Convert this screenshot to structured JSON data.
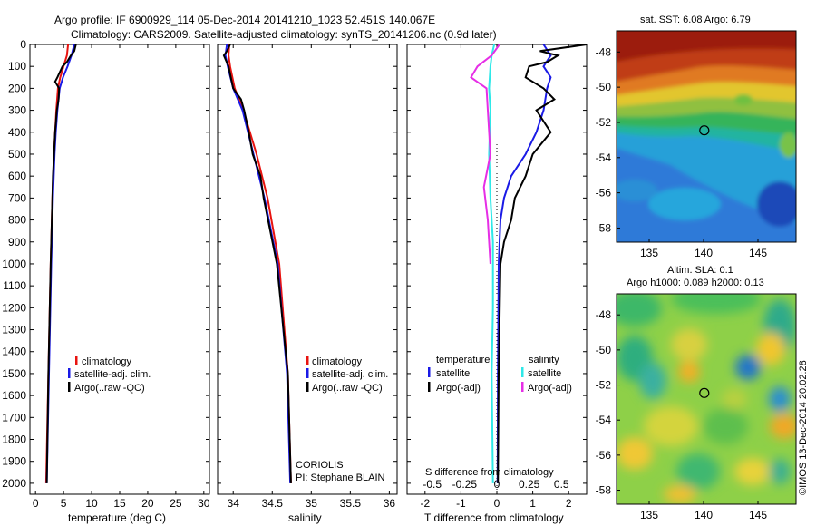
{
  "header": {
    "line1": "Argo profile: IF 6900929_114 05-Dec-2014 20141210_1023 52.451S 140.067E",
    "line2": "Climatology: CARS2009. Satellite-adjusted climatology: synTS_20141206.nc (0.9d later)"
  },
  "colors": {
    "climatology": "#e8130f",
    "satellite": "#1a1ae6",
    "argo": "#000000",
    "sat_salinity": "#2ee8e8",
    "argo_salinity": "#e62ee6"
  },
  "legend": {
    "climatology": "climatology",
    "satellite_clim": "satellite-adj. clim.",
    "argo_raw": "Argo(..raw -QC)",
    "temperature_head": "temperature",
    "salinity_head": "salinity",
    "satellite": "satellite",
    "argo_adj": "Argo(-adj)"
  },
  "annotations": {
    "coriolis": "CORIOLIS",
    "pi": "PI: Stephane BLAIN",
    "imos": "©IMOS 13-Dec-2014 20:02:28"
  },
  "chart_data": [
    {
      "type": "line",
      "xlabel": "temperature (deg C)",
      "xlim": [
        -1,
        31
      ],
      "ylim": [
        2050,
        0
      ],
      "xticks": [
        "0",
        "5",
        "10",
        "15",
        "20",
        "25",
        "30"
      ],
      "yticks": [
        "0",
        "100",
        "200",
        "300",
        "400",
        "500",
        "600",
        "700",
        "800",
        "900",
        "1000",
        "1100",
        "1200",
        "1300",
        "1400",
        "1500",
        "1600",
        "1700",
        "1800",
        "1900",
        "2000"
      ],
      "series": [
        {
          "name": "climatology",
          "depth": [
            0,
            50,
            100,
            150,
            200,
            300,
            400,
            500,
            700,
            1000,
            1500,
            2000
          ],
          "values": [
            5.8,
            5.6,
            5.0,
            4.4,
            4.0,
            3.7,
            3.5,
            3.3,
            3.0,
            2.7,
            2.3,
            1.9
          ]
        },
        {
          "name": "satellite-adj. clim.",
          "depth": [
            0,
            50,
            100,
            150,
            200,
            300,
            400,
            500,
            700,
            1000,
            1500,
            2000
          ],
          "values": [
            6.9,
            6.4,
            5.7,
            4.9,
            4.3,
            3.9,
            3.6,
            3.4,
            3.1,
            2.8,
            2.4,
            2.0
          ]
        },
        {
          "name": "Argo(..raw -QC)",
          "depth": [
            0,
            30,
            50,
            80,
            100,
            150,
            170,
            200,
            250,
            300,
            400,
            500,
            600,
            700,
            1000,
            1500,
            2000
          ],
          "values": [
            7.2,
            6.9,
            6.3,
            5.6,
            4.8,
            3.9,
            3.5,
            4.2,
            4.1,
            3.8,
            3.5,
            3.3,
            3.1,
            3.0,
            2.7,
            2.3,
            2.0
          ]
        }
      ]
    },
    {
      "type": "line",
      "xlabel": "salinity",
      "xlim": [
        33.8,
        36.1
      ],
      "ylim": [
        2050,
        0
      ],
      "xticks": [
        "34",
        "34.5",
        "35",
        "35.5",
        "36"
      ],
      "series": [
        {
          "name": "climatology",
          "depth": [
            0,
            50,
            100,
            200,
            300,
            500,
            700,
            1000,
            1500,
            2000
          ],
          "values": [
            33.95,
            33.94,
            33.96,
            34.02,
            34.13,
            34.3,
            34.44,
            34.59,
            34.7,
            34.74
          ]
        },
        {
          "name": "satellite-adj. clim.",
          "depth": [
            0,
            50,
            100,
            200,
            300,
            500,
            700,
            1000,
            1500,
            2000
          ],
          "values": [
            33.92,
            33.9,
            33.93,
            34.0,
            34.12,
            34.26,
            34.4,
            34.57,
            34.69,
            34.73
          ]
        },
        {
          "name": "Argo(..raw -QC)",
          "depth": [
            0,
            30,
            50,
            100,
            150,
            200,
            250,
            300,
            400,
            500,
            600,
            700,
            1000,
            1500,
            2000
          ],
          "values": [
            33.96,
            33.92,
            33.88,
            33.94,
            33.97,
            34.0,
            34.1,
            34.14,
            34.2,
            34.25,
            34.35,
            34.39,
            34.56,
            34.7,
            34.74
          ]
        }
      ]
    },
    {
      "type": "line",
      "xlabel": "T difference from climatology",
      "xlabel_top": "S difference from climatology",
      "xlim": [
        -2.5,
        2.5
      ],
      "ylim": [
        2050,
        0
      ],
      "xticks": [
        "-2",
        "-1",
        "0",
        "1",
        "2"
      ],
      "xticks_s": [
        "-0.5",
        "-0.25",
        "0",
        "0.25",
        "0.5"
      ],
      "series": [
        {
          "name": "temperature satellite",
          "depth": [
            0,
            50,
            100,
            150,
            200,
            300,
            400,
            500,
            600,
            700,
            800,
            1000,
            1500,
            2000
          ],
          "values": [
            1.3,
            1.5,
            1.3,
            1.5,
            1.4,
            1.3,
            1.1,
            0.8,
            0.4,
            0.2,
            0.1,
            0.05,
            0.03,
            0.02
          ]
        },
        {
          "name": "temperature Argo(-adj)",
          "depth": [
            0,
            30,
            50,
            80,
            100,
            150,
            200,
            250,
            300,
            400,
            500,
            600,
            700,
            800,
            900,
            1000,
            1500,
            2000
          ],
          "values": [
            2.5,
            1.2,
            1.7,
            1.4,
            0.9,
            0.8,
            1.3,
            1.6,
            1.1,
            1.5,
            1.0,
            0.8,
            0.5,
            0.4,
            0.2,
            0.1,
            0.05,
            0.03
          ]
        },
        {
          "name": "salinity satellite",
          "depth": [
            0,
            50,
            100,
            200,
            300,
            500,
            700,
            900,
            1200,
            1500,
            2000
          ],
          "values": [
            -0.02,
            -0.04,
            -0.05,
            -0.06,
            -0.05,
            -0.06,
            -0.05,
            -0.03,
            -0.03,
            -0.04,
            -0.03
          ]
        },
        {
          "name": "salinity Argo(-adj)",
          "depth": [
            0,
            50,
            100,
            150,
            200,
            300,
            500,
            650,
            800,
            1000
          ],
          "values": [
            0.02,
            -0.04,
            -0.15,
            -0.2,
            -0.08,
            -0.07,
            -0.05,
            -0.1,
            -0.07,
            -0.05
          ]
        }
      ]
    },
    {
      "type": "heatmap",
      "title": "sat. SST: 6.08 Argo: 6.79",
      "xlim": [
        132,
        148.5
      ],
      "ylim": [
        -58.8,
        -46.8
      ],
      "xticks": [
        "135",
        "140",
        "145"
      ],
      "yticks": [
        "-48",
        "-50",
        "-52",
        "-54",
        "-56",
        "-58"
      ],
      "marker": {
        "lon": 140.067,
        "lat": -52.451
      }
    },
    {
      "type": "heatmap",
      "title": "Altim. SLA: 0.1",
      "subtitle": "Argo h1000: 0.089 h2000: 0.13",
      "xlim": [
        132,
        148.5
      ],
      "ylim": [
        -58.8,
        -46.8
      ],
      "xticks": [
        "135",
        "140",
        "145"
      ],
      "yticks": [
        "-48",
        "-50",
        "-52",
        "-54",
        "-56",
        "-58"
      ],
      "marker": {
        "lon": 140.067,
        "lat": -52.451
      }
    }
  ]
}
